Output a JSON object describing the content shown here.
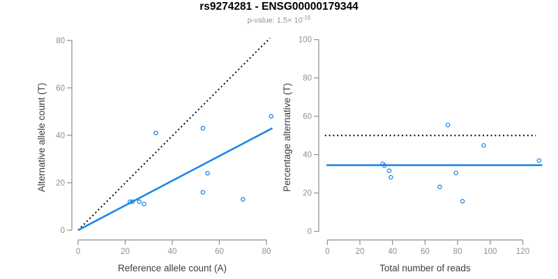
{
  "title": "rs9274281 - ENSG00000179344",
  "subtitle": {
    "prefix": "p-value: 1.5× 10",
    "exponent": "-16"
  },
  "colors": {
    "accent_blue": "#1e86e8",
    "dotted_line": "#000000",
    "axis": "#8c8c8c",
    "tick_label": "#909090",
    "axis_title": "#3d3d3d",
    "title": "#000000",
    "subtitle": "#969696"
  },
  "chart_data": [
    {
      "type": "scatter",
      "title": "",
      "xlabel": "Reference allele count (A)",
      "ylabel": "Alternative allele count (T)",
      "xlim": [
        0,
        82
      ],
      "ylim": [
        0,
        82
      ],
      "xticks": [
        0,
        20,
        40,
        60,
        80
      ],
      "yticks": [
        0,
        20,
        40,
        60,
        80
      ],
      "grid": false,
      "marker": "open-circle",
      "points": [
        [
          22,
          12
        ],
        [
          23,
          12
        ],
        [
          26,
          12
        ],
        [
          28,
          11
        ],
        [
          33,
          41
        ],
        [
          53,
          16
        ],
        [
          53,
          43
        ],
        [
          55,
          24
        ],
        [
          70,
          13
        ],
        [
          82,
          48
        ]
      ],
      "lines": [
        {
          "name": "identity-line",
          "style": "dotted",
          "color": "#000000",
          "from": [
            0,
            0
          ],
          "to": [
            81.5,
            81
          ]
        },
        {
          "name": "fit-line",
          "style": "solid",
          "color": "#1e86e8",
          "from": [
            0,
            0
          ],
          "to": [
            82.5,
            43
          ]
        }
      ]
    },
    {
      "type": "scatter",
      "title": "",
      "xlabel": "Total number of reads",
      "ylabel": "Percentage alternative (T)",
      "xlim": [
        0,
        131
      ],
      "ylim": [
        0,
        100
      ],
      "xticks": [
        0,
        20,
        40,
        60,
        80,
        100,
        120
      ],
      "yticks": [
        0,
        20,
        40,
        60,
        80,
        100
      ],
      "grid": false,
      "marker": "open-circle",
      "points": [
        [
          34,
          35.3
        ],
        [
          35,
          34.3
        ],
        [
          38,
          31.6
        ],
        [
          39,
          28.2
        ],
        [
          69,
          23.2
        ],
        [
          74,
          55.4
        ],
        [
          79,
          30.4
        ],
        [
          83,
          15.7
        ],
        [
          96,
          44.8
        ],
        [
          130,
          36.9
        ]
      ],
      "lines": [
        {
          "name": "fifty-percent-line",
          "style": "dotted",
          "color": "#000000",
          "from": [
            -1.5,
            50
          ],
          "to": [
            128,
            50
          ]
        },
        {
          "name": "mean-percentage-line",
          "style": "solid",
          "color": "#1e86e8",
          "from": [
            -0.5,
            34.5
          ],
          "to": [
            132,
            34.5
          ]
        }
      ]
    }
  ]
}
